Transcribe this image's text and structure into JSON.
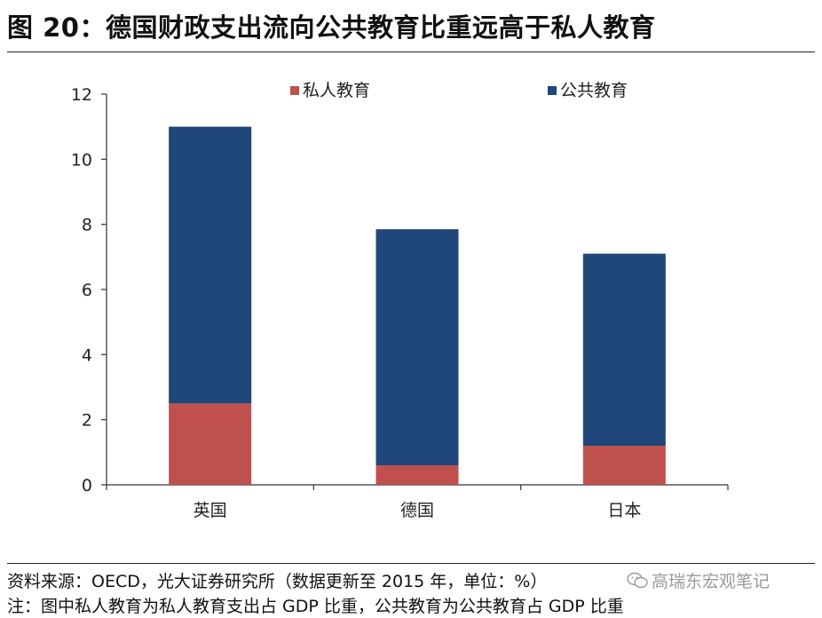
{
  "title": "图 20：德国财政支出流向公共教育比重远高于私人教育",
  "chart_data": {
    "type": "bar",
    "stacked": true,
    "categories": [
      "英国",
      "德国",
      "日本"
    ],
    "series": [
      {
        "name": "私人教育",
        "values": [
          2.5,
          0.6,
          1.2
        ],
        "color": "#c0504d"
      },
      {
        "name": "公共教育",
        "values": [
          8.5,
          7.25,
          5.9
        ],
        "color": "#1f4779"
      }
    ],
    "title": "",
    "xlabel": "",
    "ylabel": "",
    "ylim": [
      0,
      12
    ],
    "yticks": [
      0,
      2,
      4,
      6,
      8,
      10,
      12
    ],
    "grid": false,
    "legend": "top-center"
  },
  "footer": {
    "source": "资料来源：OECD，光大证券研究所（数据更新至 2015 年，单位：%）",
    "note": "注：图中私人教育为私人教育支出占 GDP 比重，公共教育为公共教育占 GDP 比重"
  },
  "watermark": {
    "text": "高瑞东宏观笔记",
    "icon": "wechat-icon"
  }
}
